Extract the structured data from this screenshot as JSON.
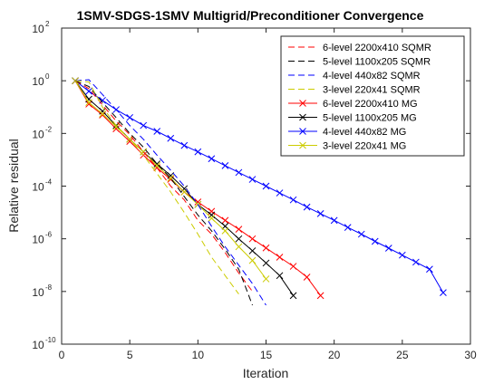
{
  "chart_data": {
    "type": "line",
    "title": "1SMV-SDGS-1SMV Multigrid/Preconditioner Convergence",
    "xlabel": "Iteration",
    "ylabel": "Relative residual",
    "xlim": [
      0,
      30
    ],
    "ylim": [
      1e-10,
      100
    ],
    "yscale": "log",
    "xticks": [
      "0",
      "5",
      "10",
      "15",
      "20",
      "25",
      "30"
    ],
    "yticks": [
      {
        "base": "10",
        "exp": "-10"
      },
      {
        "base": "10",
        "exp": "-8"
      },
      {
        "base": "10",
        "exp": "-6"
      },
      {
        "base": "10",
        "exp": "-4"
      },
      {
        "base": "10",
        "exp": "-2"
      },
      {
        "base": "10",
        "exp": "0"
      },
      {
        "base": "10",
        "exp": "2"
      }
    ],
    "grid": false,
    "legend_position": "top-right",
    "series": [
      {
        "name": "6-level 2200x410 SQMR",
        "color": "#ff0000",
        "style": "dashed",
        "marker": "none",
        "x": [
          1,
          2,
          3,
          4,
          5,
          6,
          7,
          8,
          9,
          10,
          11,
          12,
          13,
          14
        ],
        "y": [
          1,
          0.5,
          0.12,
          0.03,
          0.009,
          0.002,
          0.0005,
          0.0001,
          3e-05,
          5e-06,
          1.5e-06,
          3e-07,
          5e-08,
          1e-08
        ]
      },
      {
        "name": "5-level 1100x205 SQMR",
        "color": "#000000",
        "style": "dashed",
        "marker": "none",
        "x": [
          1,
          2,
          3,
          4,
          5,
          6,
          7,
          8,
          9,
          10,
          11,
          12,
          13,
          14
        ],
        "y": [
          1,
          0.6,
          0.15,
          0.04,
          0.01,
          0.003,
          0.0007,
          0.0002,
          4e-05,
          8e-06,
          2e-06,
          4e-07,
          7e-08,
          3e-09
        ]
      },
      {
        "name": "4-level 440x82 SQMR",
        "color": "#0000ff",
        "style": "dashed",
        "marker": "none",
        "x": [
          1,
          2,
          3,
          4,
          5,
          6,
          7,
          8,
          9,
          10,
          11,
          12,
          13,
          14,
          15
        ],
        "y": [
          1,
          1.1,
          0.3,
          0.08,
          0.02,
          0.006,
          0.0015,
          0.0004,
          0.0001,
          2e-05,
          3e-06,
          5e-07,
          1e-07,
          2e-08,
          3e-09
        ]
      },
      {
        "name": "3-level 220x41 SQMR",
        "color": "#cccc00",
        "style": "dashed",
        "marker": "none",
        "x": [
          1,
          2,
          3,
          4,
          5,
          6,
          7,
          8,
          9,
          10,
          11,
          12,
          13
        ],
        "y": [
          1,
          0.9,
          0.1,
          0.02,
          0.006,
          0.0015,
          0.0003,
          6e-05,
          1e-05,
          1.5e-06,
          2e-07,
          4e-08,
          8e-09
        ]
      },
      {
        "name": "6-level 2200x410 MG",
        "color": "#ff0000",
        "style": "solid",
        "marker": "x",
        "x": [
          1,
          2,
          3,
          4,
          5,
          6,
          7,
          8,
          9,
          10,
          11,
          12,
          13,
          14,
          15,
          16,
          17,
          18,
          19
        ],
        "y": [
          1,
          0.13,
          0.05,
          0.015,
          0.005,
          0.0015,
          0.0005,
          0.00018,
          6e-05,
          2.5e-05,
          1.1e-05,
          5e-06,
          2.3e-06,
          1e-06,
          4.5e-07,
          2e-07,
          9e-08,
          3.5e-08,
          7e-09
        ]
      },
      {
        "name": "5-level 1100x205 MG",
        "color": "#000000",
        "style": "solid",
        "marker": "x",
        "x": [
          1,
          2,
          3,
          4,
          5,
          6,
          7,
          8,
          9,
          10,
          11,
          12,
          13,
          14,
          15,
          16,
          17
        ],
        "y": [
          1,
          0.2,
          0.07,
          0.02,
          0.006,
          0.002,
          0.0007,
          0.00025,
          8e-05,
          2e-05,
          8e-06,
          3e-06,
          1e-06,
          3.5e-07,
          1.2e-07,
          4e-08,
          7e-09
        ]
      },
      {
        "name": "4-level 440x82 MG",
        "color": "#0000ff",
        "style": "solid",
        "marker": "x",
        "x": [
          1,
          2,
          3,
          4,
          5,
          6,
          7,
          8,
          9,
          10,
          11,
          12,
          13,
          14,
          15,
          16,
          17,
          18,
          19,
          20,
          21,
          22,
          23,
          24,
          25,
          26,
          27,
          28
        ],
        "y": [
          1,
          0.4,
          0.18,
          0.08,
          0.04,
          0.02,
          0.012,
          0.0065,
          0.0035,
          0.002,
          0.0011,
          0.0006,
          0.00033,
          0.00018,
          0.0001,
          5.5e-05,
          3e-05,
          1.6e-05,
          9e-06,
          5e-06,
          2.7e-06,
          1.5e-06,
          8e-07,
          4.4e-07,
          2.4e-07,
          1.3e-07,
          7e-08,
          9e-09
        ]
      },
      {
        "name": "3-level 220x41 MG",
        "color": "#cccc00",
        "style": "solid",
        "marker": "x",
        "x": [
          1,
          2,
          3,
          4,
          5,
          6,
          7,
          8,
          9,
          10,
          11,
          12,
          13,
          14,
          15
        ],
        "y": [
          1,
          0.15,
          0.055,
          0.018,
          0.006,
          0.002,
          0.0006,
          0.0002,
          6e-05,
          2e-05,
          6e-06,
          2e-06,
          5e-07,
          1.5e-07,
          3e-08
        ]
      }
    ]
  }
}
